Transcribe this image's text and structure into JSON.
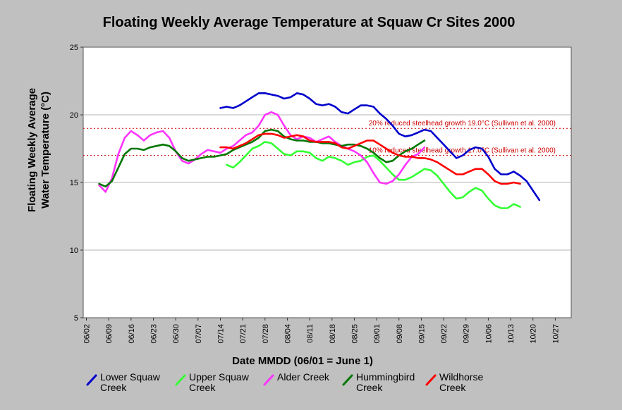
{
  "chart_data": {
    "type": "line",
    "title": "Floating Weekly Average Temperature at Squaw Cr Sites 2000",
    "xlabel": "Date MMDD (06/01 = June 1)",
    "ylabel_line1": "Floating Weekly Average",
    "ylabel_line2": "Water Temperature (°C)",
    "x_unit": "day of year",
    "xlim": [
      153,
      306
    ],
    "ylim": [
      5,
      25
    ],
    "x_ticks": [
      {
        "day": 154,
        "label": "06/02"
      },
      {
        "day": 161,
        "label": "06/09"
      },
      {
        "day": 168,
        "label": "06/16"
      },
      {
        "day": 175,
        "label": "06/23"
      },
      {
        "day": 182,
        "label": "06/30"
      },
      {
        "day": 189,
        "label": "07/07"
      },
      {
        "day": 196,
        "label": "07/14"
      },
      {
        "day": 203,
        "label": "07/21"
      },
      {
        "day": 210,
        "label": "07/28"
      },
      {
        "day": 217,
        "label": "08/04"
      },
      {
        "day": 224,
        "label": "08/11"
      },
      {
        "day": 231,
        "label": "08/18"
      },
      {
        "day": 238,
        "label": "08/25"
      },
      {
        "day": 245,
        "label": "09/01"
      },
      {
        "day": 252,
        "label": "09/08"
      },
      {
        "day": 259,
        "label": "09/15"
      },
      {
        "day": 266,
        "label": "09/22"
      },
      {
        "day": 273,
        "label": "09/29"
      },
      {
        "day": 280,
        "label": "10/06"
      },
      {
        "day": 287,
        "label": "10/13"
      },
      {
        "day": 294,
        "label": "10/20"
      },
      {
        "day": 301,
        "label": "10/27"
      }
    ],
    "y_ticks": [
      5,
      10,
      15,
      20,
      25
    ],
    "grid": true,
    "legend_position": "bottom",
    "thresholds": [
      {
        "value": 19.0,
        "label": "20% reduced steelhead growth 19.0°C (Sullivan et al. 2000)",
        "color": "#cc0000"
      },
      {
        "value": 17.0,
        "label": "10% reduced steelhead growth 17.0°C (Sullivan et al. 2000)",
        "color": "#cc0000"
      }
    ],
    "series": [
      {
        "name_line1": "Lower Squaw",
        "name_line2": "Creek",
        "color": "#0000cc",
        "x": [
          196,
          198,
          200,
          202,
          204,
          206,
          208,
          210,
          212,
          214,
          216,
          218,
          220,
          222,
          224,
          226,
          228,
          230,
          232,
          234,
          236,
          238,
          240,
          242,
          244,
          246,
          248,
          250,
          252,
          254,
          256,
          258,
          260,
          262,
          264,
          266,
          268,
          270,
          272,
          274,
          276,
          278,
          280,
          282,
          284,
          286,
          288,
          290,
          292,
          294,
          296
        ],
        "y": [
          20.5,
          20.6,
          20.5,
          20.7,
          21.0,
          21.3,
          21.6,
          21.6,
          21.5,
          21.4,
          21.2,
          21.3,
          21.6,
          21.5,
          21.2,
          20.8,
          20.7,
          20.8,
          20.6,
          20.2,
          20.1,
          20.4,
          20.7,
          20.7,
          20.6,
          20.1,
          19.7,
          19.2,
          18.6,
          18.4,
          18.5,
          18.7,
          18.9,
          18.8,
          18.3,
          17.8,
          17.3,
          16.8,
          17.0,
          17.4,
          17.6,
          17.5,
          16.9,
          16.0,
          15.6,
          15.6,
          15.8,
          15.5,
          15.1,
          14.4,
          13.7
        ]
      },
      {
        "name_line1": "Upper Squaw",
        "name_line2": "Creek",
        "color": "#33ff33",
        "x": [
          198,
          200,
          202,
          204,
          206,
          208,
          210,
          212,
          214,
          216,
          218,
          220,
          222,
          224,
          226,
          228,
          230,
          232,
          234,
          236,
          238,
          240,
          242,
          244,
          246,
          248,
          250,
          252,
          254,
          256,
          258,
          260,
          262,
          264,
          266,
          268,
          270,
          272,
          274,
          276,
          278,
          280,
          282,
          284,
          286,
          288,
          290
        ],
        "y": [
          16.3,
          16.1,
          16.5,
          17.0,
          17.5,
          17.7,
          18.0,
          17.9,
          17.5,
          17.1,
          17.0,
          17.3,
          17.3,
          17.2,
          16.8,
          16.6,
          16.9,
          16.8,
          16.6,
          16.3,
          16.5,
          16.6,
          16.9,
          17.0,
          16.6,
          16.1,
          15.6,
          15.2,
          15.2,
          15.4,
          15.7,
          16.0,
          15.9,
          15.5,
          14.9,
          14.3,
          13.8,
          13.9,
          14.3,
          14.6,
          14.4,
          13.8,
          13.3,
          13.1,
          13.1,
          13.4,
          13.2
        ]
      },
      {
        "name_line1": "Alder Creek",
        "name_line2": "",
        "color": "#ff33ff",
        "x": [
          158,
          160,
          162,
          164,
          166,
          168,
          170,
          172,
          174,
          176,
          178,
          180,
          182,
          184,
          186,
          188,
          190,
          192,
          194,
          196,
          198,
          200,
          202,
          204,
          206,
          208,
          210,
          212,
          214,
          216,
          218,
          220,
          222,
          224,
          226,
          228,
          230,
          232,
          234,
          236,
          238,
          240,
          242,
          244,
          246,
          248,
          250,
          252,
          254,
          256,
          258,
          260
        ],
        "y": [
          14.8,
          14.3,
          15.3,
          17.1,
          18.3,
          18.8,
          18.5,
          18.1,
          18.5,
          18.7,
          18.8,
          18.3,
          17.3,
          16.6,
          16.4,
          16.7,
          17.1,
          17.4,
          17.3,
          17.2,
          17.5,
          17.7,
          18.1,
          18.5,
          18.7,
          19.2,
          20.0,
          20.2,
          20.0,
          19.2,
          18.5,
          18.2,
          18.4,
          18.3,
          18.0,
          18.2,
          18.4,
          18.0,
          17.7,
          17.5,
          17.3,
          17.0,
          16.5,
          15.7,
          15.0,
          14.9,
          15.1,
          15.6,
          16.3,
          16.9,
          17.1,
          17.6
        ]
      },
      {
        "name_line1": "Hummingbird",
        "name_line2": "Creek",
        "color": "#007700",
        "x": [
          158,
          160,
          162,
          164,
          166,
          168,
          170,
          172,
          174,
          176,
          178,
          180,
          182,
          184,
          186,
          188,
          190,
          192,
          194,
          196,
          198,
          200,
          202,
          204,
          206,
          208,
          210,
          212,
          214,
          216,
          218,
          220,
          222,
          224,
          226,
          228,
          230,
          232,
          234,
          236,
          238,
          240,
          242,
          244,
          246,
          248,
          250,
          252,
          254,
          256,
          258,
          260
        ],
        "y": [
          14.9,
          14.7,
          15.1,
          16.1,
          17.1,
          17.5,
          17.5,
          17.4,
          17.6,
          17.7,
          17.8,
          17.7,
          17.3,
          16.8,
          16.6,
          16.7,
          16.8,
          16.9,
          16.9,
          17.0,
          17.1,
          17.4,
          17.6,
          17.8,
          18.0,
          18.3,
          18.8,
          18.9,
          18.8,
          18.4,
          18.2,
          18.1,
          18.1,
          18.0,
          18.0,
          17.9,
          17.9,
          17.8,
          17.7,
          17.8,
          17.8,
          17.7,
          17.5,
          17.2,
          16.8,
          16.5,
          16.6,
          17.0,
          17.3,
          17.5,
          17.8,
          18.1
        ]
      },
      {
        "name_line1": "Wildhorse",
        "name_line2": "Creek",
        "color": "#ff0000",
        "x": [
          196,
          198,
          200,
          202,
          204,
          206,
          208,
          210,
          212,
          214,
          216,
          218,
          220,
          222,
          224,
          226,
          228,
          230,
          232,
          234,
          236,
          238,
          240,
          242,
          244,
          246,
          248,
          250,
          252,
          254,
          256,
          258,
          260,
          262,
          264,
          266,
          268,
          270,
          272,
          274,
          276,
          278,
          280,
          282,
          284,
          286,
          288,
          290
        ],
        "y": [
          17.6,
          17.6,
          17.5,
          17.7,
          17.9,
          18.2,
          18.5,
          18.6,
          18.6,
          18.5,
          18.3,
          18.4,
          18.5,
          18.4,
          18.1,
          18.0,
          18.0,
          18.0,
          17.9,
          17.6,
          17.5,
          17.7,
          17.9,
          18.1,
          18.1,
          17.8,
          17.5,
          17.2,
          17.0,
          16.9,
          16.9,
          16.8,
          16.8,
          16.7,
          16.5,
          16.2,
          15.9,
          15.6,
          15.6,
          15.8,
          16.0,
          16.0,
          15.6,
          15.1,
          14.9,
          14.9,
          15.0,
          14.9
        ]
      }
    ]
  }
}
